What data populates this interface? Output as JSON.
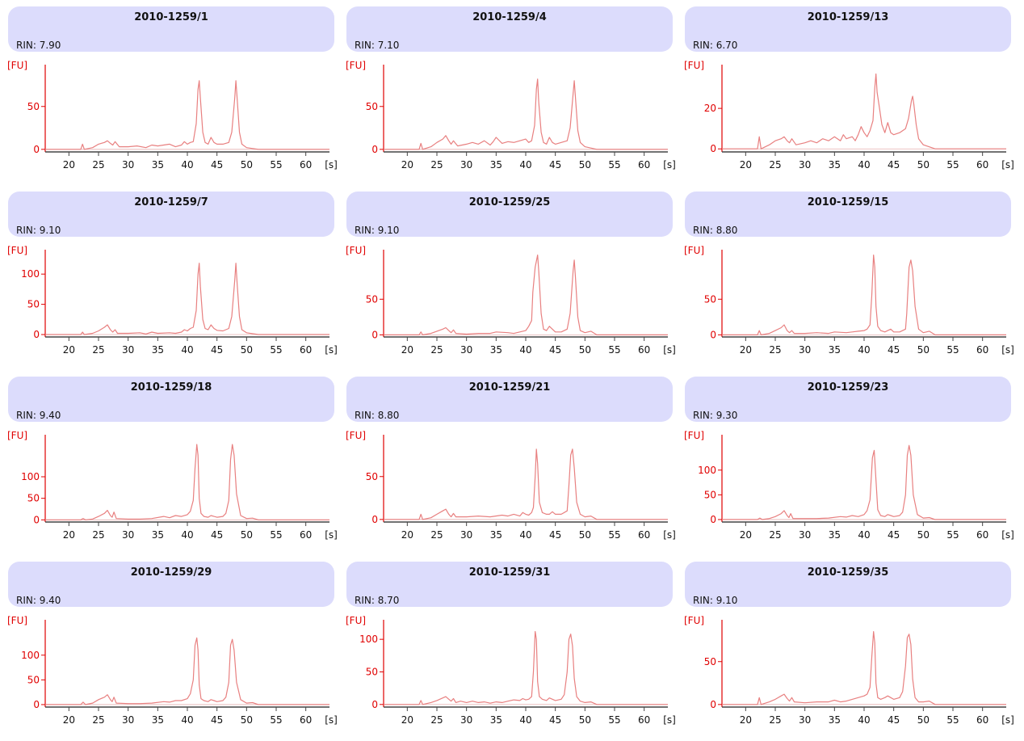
{
  "chart_data": [
    {
      "type": "line",
      "title": "2010-1259/1",
      "rin_label": "RIN: 7.90",
      "y_unit": "[FU]",
      "x_unit": "[s]",
      "x_ticks": [
        20,
        25,
        30,
        35,
        40,
        45,
        50,
        55,
        60
      ],
      "y_ticks": [
        0,
        50
      ],
      "xlim": [
        16,
        64
      ],
      "ylim": [
        -3,
        95
      ],
      "line_color": "#e88080",
      "axis_color": "#e00000",
      "x": [
        16,
        22,
        22.3,
        22.6,
        24,
        25,
        26,
        26.5,
        27,
        27.4,
        27.8,
        28.5,
        30,
        31.5,
        33,
        34,
        35,
        37,
        38,
        39,
        39.5,
        40,
        40.5,
        41,
        41.5,
        41.8,
        42,
        42.2,
        42.6,
        43,
        43.5,
        44,
        44.5,
        45,
        46,
        47,
        47.5,
        48,
        48.2,
        48.4,
        48.8,
        49.2,
        50,
        52,
        64
      ],
      "y": [
        0,
        0,
        6,
        0,
        2,
        6,
        8,
        10,
        7,
        5,
        9,
        3,
        3,
        4,
        2,
        5,
        4,
        6,
        3,
        5,
        9,
        6,
        8,
        9,
        30,
        70,
        80,
        60,
        20,
        8,
        6,
        14,
        8,
        6,
        6,
        8,
        20,
        60,
        80,
        60,
        20,
        6,
        2,
        0,
        0
      ]
    },
    {
      "type": "line",
      "title": "2010-1259/4",
      "rin_label": "RIN: 7.10",
      "y_unit": "[FU]",
      "x_unit": "[s]",
      "x_ticks": [
        20,
        25,
        30,
        35,
        40,
        45,
        50,
        55,
        60
      ],
      "y_ticks": [
        0,
        50
      ],
      "xlim": [
        16,
        64
      ],
      "ylim": [
        -3,
        95
      ],
      "line_color": "#e88080",
      "axis_color": "#e00000",
      "x": [
        16,
        22,
        22.3,
        22.6,
        24,
        25,
        26,
        26.5,
        27,
        27.4,
        27.8,
        28.5,
        30,
        31,
        32,
        33,
        34,
        34.5,
        35,
        36,
        37,
        38,
        39,
        40,
        40.5,
        41,
        41.5,
        41.8,
        42,
        42.2,
        42.6,
        43,
        43.5,
        44,
        44.5,
        45,
        46,
        47,
        47.5,
        48,
        48.2,
        48.4,
        48.8,
        49.2,
        50,
        52,
        64
      ],
      "y": [
        0,
        0,
        7,
        0,
        3,
        8,
        12,
        16,
        10,
        6,
        10,
        4,
        6,
        8,
        6,
        10,
        5,
        9,
        14,
        7,
        9,
        8,
        10,
        12,
        8,
        10,
        28,
        70,
        82,
        55,
        20,
        8,
        6,
        14,
        8,
        6,
        8,
        10,
        25,
        65,
        80,
        60,
        22,
        8,
        3,
        0,
        0
      ]
    },
    {
      "type": "line",
      "title": "2010-1259/13",
      "rin_label": "RIN: 6.70",
      "y_unit": "[FU]",
      "x_unit": "[s]",
      "x_ticks": [
        20,
        25,
        30,
        35,
        40,
        45,
        50,
        55,
        60
      ],
      "y_ticks": [
        0,
        20
      ],
      "xlim": [
        16,
        64
      ],
      "ylim": [
        -1.5,
        40
      ],
      "line_color": "#e88080",
      "axis_color": "#e00000",
      "x": [
        16,
        22,
        22.3,
        22.6,
        24,
        25,
        26,
        26.5,
        27,
        27.4,
        27.8,
        28.5,
        30,
        31,
        32,
        33,
        34,
        35,
        36,
        36.5,
        37,
        38,
        38.5,
        39,
        39.5,
        40,
        40.5,
        41,
        41.5,
        41.8,
        42,
        42.2,
        42.6,
        43,
        43.5,
        44,
        44.5,
        45,
        46,
        47,
        47.5,
        48,
        48.2,
        48.4,
        48.8,
        49.2,
        50,
        52,
        64
      ],
      "y": [
        0,
        0,
        6,
        0,
        2,
        4,
        5,
        6,
        4,
        3,
        5,
        2,
        3,
        4,
        3,
        5,
        4,
        6,
        4,
        7,
        5,
        6,
        4,
        7,
        11,
        8,
        6,
        9,
        14,
        30,
        37,
        28,
        20,
        12,
        8,
        13,
        8,
        7,
        8,
        10,
        15,
        24,
        26,
        22,
        12,
        5,
        2,
        0,
        0
      ]
    },
    {
      "type": "line",
      "title": "2010-1259/7",
      "rin_label": "RIN: 9.10",
      "y_unit": "[FU]",
      "x_unit": "[s]",
      "x_ticks": [
        20,
        25,
        30,
        35,
        40,
        45,
        50,
        55,
        60
      ],
      "y_ticks": [
        0,
        50,
        100
      ],
      "xlim": [
        16,
        64
      ],
      "ylim": [
        -4,
        135
      ],
      "line_color": "#e88080",
      "axis_color": "#e00000",
      "x": [
        16,
        22,
        22.3,
        22.6,
        24,
        25,
        26,
        26.5,
        27,
        27.4,
        27.8,
        28.2,
        30,
        32,
        33,
        34,
        35,
        37,
        38,
        39,
        39.5,
        40,
        40.5,
        41,
        41.5,
        41.8,
        42,
        42.2,
        42.6,
        43,
        43.5,
        44,
        44.5,
        45,
        46,
        47,
        47.5,
        48,
        48.2,
        48.4,
        48.8,
        49.2,
        50,
        52,
        64
      ],
      "y": [
        0,
        0,
        4,
        0,
        2,
        6,
        12,
        16,
        8,
        4,
        8,
        2,
        2,
        3,
        1,
        4,
        2,
        3,
        2,
        4,
        8,
        6,
        10,
        12,
        40,
        100,
        118,
        80,
        25,
        10,
        8,
        16,
        10,
        7,
        6,
        10,
        30,
        90,
        118,
        85,
        30,
        8,
        3,
        0,
        0
      ]
    },
    {
      "type": "line",
      "title": "2010-1259/25",
      "rin_label": "RIN: 9.10",
      "y_unit": "[FU]",
      "x_unit": "[s]",
      "x_ticks": [
        20,
        25,
        30,
        35,
        40,
        45,
        50,
        55,
        60
      ],
      "y_ticks": [
        0,
        50
      ],
      "xlim": [
        16,
        64
      ],
      "ylim": [
        -3,
        115
      ],
      "line_color": "#e88080",
      "axis_color": "#e00000",
      "x": [
        16,
        22,
        22.3,
        22.6,
        24,
        25,
        26,
        26.5,
        27,
        27.4,
        27.8,
        28.2,
        30,
        32,
        34,
        35,
        37,
        38,
        39,
        40,
        40.5,
        41,
        41.2,
        41.6,
        42,
        42.2,
        42.6,
        43,
        43.5,
        44,
        44.5,
        45,
        46,
        47,
        47.5,
        48,
        48.2,
        48.4,
        48.8,
        49.2,
        50,
        51,
        52,
        64
      ],
      "y": [
        0,
        0,
        4,
        0,
        2,
        5,
        8,
        10,
        6,
        3,
        7,
        2,
        1,
        2,
        2,
        4,
        3,
        2,
        4,
        6,
        12,
        20,
        60,
        95,
        112,
        90,
        30,
        8,
        6,
        12,
        8,
        4,
        4,
        8,
        30,
        90,
        105,
        80,
        25,
        6,
        3,
        5,
        0,
        0
      ]
    },
    {
      "type": "line",
      "title": "2010-1259/15",
      "rin_label": "RIN: 8.80",
      "y_unit": "[FU]",
      "x_unit": "[s]",
      "x_ticks": [
        20,
        25,
        30,
        35,
        40,
        45,
        50,
        55,
        60
      ],
      "y_ticks": [
        0,
        50
      ],
      "xlim": [
        16,
        64
      ],
      "ylim": [
        -3,
        115
      ],
      "line_color": "#e88080",
      "axis_color": "#e00000",
      "x": [
        16,
        22,
        22.3,
        22.6,
        24,
        25,
        26,
        26.5,
        27,
        27.4,
        27.8,
        28.2,
        30,
        32,
        34,
        35,
        37,
        38,
        39,
        40,
        40.5,
        41,
        41.3,
        41.6,
        41.8,
        42,
        42.3,
        42.8,
        43.5,
        44,
        44.5,
        45,
        46,
        47,
        47.2,
        47.6,
        47.9,
        48.2,
        48.6,
        49.2,
        50,
        51,
        52,
        64
      ],
      "y": [
        0,
        0,
        6,
        0,
        2,
        6,
        10,
        14,
        6,
        3,
        6,
        2,
        2,
        3,
        2,
        4,
        3,
        4,
        5,
        6,
        8,
        14,
        55,
        112,
        95,
        40,
        12,
        6,
        4,
        6,
        8,
        4,
        4,
        8,
        30,
        95,
        105,
        90,
        40,
        8,
        3,
        5,
        0,
        0
      ]
    },
    {
      "type": "line",
      "title": "2010-1259/18",
      "rin_label": "RIN: 9.40",
      "y_unit": "[FU]",
      "x_unit": "[s]",
      "x_ticks": [
        20,
        25,
        30,
        35,
        40,
        45,
        50,
        55,
        60
      ],
      "y_ticks": [
        0,
        50,
        100
      ],
      "xlim": [
        16,
        64
      ],
      "ylim": [
        -5,
        190
      ],
      "line_color": "#e88080",
      "axis_color": "#e00000",
      "x": [
        16,
        22,
        22.4,
        22.8,
        24,
        25,
        26,
        26.5,
        27,
        27.3,
        27.6,
        28,
        30,
        32,
        34,
        36,
        37,
        38,
        39,
        40,
        40.5,
        41,
        41.3,
        41.6,
        41.8,
        42,
        42.3,
        42.8,
        43.5,
        44,
        44.5,
        45,
        46,
        46.5,
        47,
        47.3,
        47.6,
        47.9,
        48.3,
        49,
        50,
        51,
        52,
        64
      ],
      "y": [
        0,
        0,
        3,
        0,
        2,
        8,
        15,
        22,
        10,
        6,
        18,
        3,
        2,
        2,
        3,
        8,
        5,
        10,
        8,
        12,
        20,
        45,
        120,
        175,
        150,
        50,
        15,
        8,
        6,
        10,
        8,
        6,
        8,
        15,
        45,
        140,
        175,
        150,
        60,
        10,
        3,
        4,
        0,
        0
      ]
    },
    {
      "type": "line",
      "title": "2010-1259/21",
      "rin_label": "RIN: 8.80",
      "y_unit": "[FU]",
      "x_unit": "[s]",
      "x_ticks": [
        20,
        25,
        30,
        35,
        40,
        45,
        50,
        55,
        60
      ],
      "y_ticks": [
        0,
        50
      ],
      "xlim": [
        16,
        64
      ],
      "ylim": [
        -3,
        95
      ],
      "line_color": "#e88080",
      "axis_color": "#e00000",
      "x": [
        16,
        22,
        22.3,
        22.6,
        24,
        25,
        26,
        26.5,
        27,
        27.4,
        27.8,
        28.2,
        30,
        32,
        34,
        36,
        37,
        38,
        39,
        39.5,
        40,
        40.5,
        41,
        41.3,
        41.6,
        41.8,
        42,
        42.3,
        42.8,
        43.5,
        44,
        44.5,
        45,
        46,
        47,
        47.3,
        47.6,
        47.9,
        48.2,
        48.6,
        49.2,
        50,
        51,
        52,
        64
      ],
      "y": [
        0,
        0,
        6,
        0,
        2,
        6,
        10,
        12,
        6,
        3,
        7,
        3,
        3,
        4,
        3,
        5,
        4,
        6,
        4,
        8,
        6,
        5,
        8,
        14,
        50,
        82,
        65,
        20,
        8,
        6,
        6,
        9,
        6,
        6,
        10,
        40,
        75,
        82,
        60,
        20,
        6,
        3,
        4,
        0,
        0
      ]
    },
    {
      "type": "line",
      "title": "2010-1259/23",
      "rin_label": "RIN: 9.30",
      "y_unit": "[FU]",
      "x_unit": "[s]",
      "x_ticks": [
        20,
        25,
        30,
        35,
        40,
        45,
        50,
        55,
        60
      ],
      "y_ticks": [
        0,
        50,
        100
      ],
      "xlim": [
        16,
        64
      ],
      "ylim": [
        -5,
        165
      ],
      "line_color": "#e88080",
      "axis_color": "#e00000",
      "x": [
        16,
        22,
        22.4,
        22.8,
        24,
        25,
        26,
        26.5,
        27,
        27.3,
        27.6,
        28,
        30,
        32,
        34,
        36,
        37,
        38,
        39,
        40,
        40.5,
        41,
        41.4,
        41.7,
        42,
        42.3,
        42.8,
        43.5,
        44,
        44.5,
        45,
        46,
        46.5,
        47,
        47.3,
        47.6,
        47.9,
        48.3,
        49,
        50,
        51,
        52,
        64
      ],
      "y": [
        0,
        0,
        3,
        0,
        2,
        6,
        12,
        18,
        8,
        4,
        12,
        2,
        2,
        2,
        3,
        6,
        5,
        8,
        6,
        10,
        18,
        40,
        125,
        140,
        80,
        20,
        8,
        6,
        10,
        8,
        6,
        8,
        15,
        50,
        130,
        150,
        130,
        50,
        10,
        3,
        4,
        0,
        0
      ]
    },
    {
      "type": "line",
      "title": "2010-1259/29",
      "rin_label": "RIN: 9.40",
      "y_unit": "[FU]",
      "x_unit": "[s]",
      "x_ticks": [
        20,
        25,
        30,
        35,
        40,
        45,
        50,
        55,
        60
      ],
      "y_ticks": [
        0,
        50,
        100
      ],
      "xlim": [
        16,
        64
      ],
      "ylim": [
        -5,
        165
      ],
      "line_color": "#e88080",
      "axis_color": "#e00000",
      "x": [
        16,
        22,
        22.4,
        22.8,
        24,
        25,
        26,
        26.5,
        27,
        27.3,
        27.6,
        28,
        30,
        32,
        34,
        36,
        37,
        38,
        39,
        40,
        40.5,
        41,
        41.3,
        41.6,
        41.8,
        42,
        42.3,
        42.8,
        43.5,
        44,
        44.5,
        45,
        46,
        46.5,
        47,
        47.3,
        47.6,
        47.9,
        48.3,
        49,
        50,
        51,
        52,
        64
      ],
      "y": [
        0,
        0,
        5,
        0,
        3,
        10,
        15,
        20,
        10,
        6,
        15,
        3,
        2,
        2,
        3,
        6,
        5,
        8,
        8,
        12,
        22,
        50,
        120,
        135,
        110,
        40,
        12,
        8,
        6,
        10,
        8,
        6,
        8,
        15,
        45,
        120,
        132,
        110,
        45,
        10,
        3,
        4,
        0,
        0
      ]
    },
    {
      "type": "line",
      "title": "2010-1259/31",
      "rin_label": "RIN: 8.70",
      "y_unit": "[FU]",
      "x_unit": "[s]",
      "x_ticks": [
        20,
        25,
        30,
        35,
        40,
        45,
        50,
        55,
        60
      ],
      "y_ticks": [
        0,
        50,
        100
      ],
      "xlim": [
        16,
        64
      ],
      "ylim": [
        -4,
        125
      ],
      "line_color": "#e88080",
      "axis_color": "#e00000",
      "x": [
        16,
        22,
        22.3,
        22.6,
        24,
        25,
        26,
        26.5,
        27,
        27.4,
        27.8,
        28.2,
        29,
        30,
        31,
        32,
        33,
        34,
        35,
        36,
        37,
        38,
        39,
        39.5,
        40,
        40.5,
        41,
        41.3,
        41.6,
        41.8,
        42,
        42.3,
        42.8,
        43.5,
        44,
        44.5,
        45,
        46,
        46.5,
        47,
        47.3,
        47.6,
        47.9,
        48.2,
        48.6,
        49.2,
        50,
        51,
        52,
        64
      ],
      "y": [
        0,
        0,
        6,
        0,
        3,
        6,
        10,
        12,
        8,
        5,
        9,
        3,
        5,
        3,
        5,
        3,
        4,
        2,
        4,
        3,
        5,
        7,
        6,
        9,
        7,
        8,
        12,
        50,
        112,
        100,
        35,
        12,
        8,
        6,
        10,
        8,
        6,
        8,
        15,
        50,
        100,
        108,
        90,
        40,
        12,
        5,
        3,
        4,
        0,
        0
      ]
    },
    {
      "type": "line",
      "title": "2010-1259/35",
      "rin_label": "RIN: 9.10",
      "y_unit": "[FU]",
      "x_unit": "[s]",
      "x_ticks": [
        20,
        25,
        30,
        35,
        40,
        45,
        50,
        55,
        60
      ],
      "y_ticks": [
        0,
        50
      ],
      "xlim": [
        16,
        64
      ],
      "ylim": [
        -3,
        95
      ],
      "line_color": "#e88080",
      "axis_color": "#e00000",
      "x": [
        16,
        22,
        22.3,
        22.6,
        24,
        25,
        26,
        26.5,
        27,
        27.4,
        27.8,
        28.2,
        30,
        32,
        34,
        35,
        36,
        37,
        38,
        39,
        40,
        40.5,
        41,
        41.3,
        41.6,
        41.8,
        42,
        42.3,
        42.8,
        43.5,
        44,
        44.5,
        45,
        46,
        46.5,
        47,
        47.3,
        47.6,
        47.9,
        48.2,
        48.6,
        49.2,
        50,
        51,
        52,
        64
      ],
      "y": [
        0,
        0,
        8,
        0,
        3,
        6,
        10,
        12,
        7,
        4,
        8,
        3,
        2,
        3,
        3,
        5,
        3,
        4,
        6,
        8,
        10,
        12,
        20,
        55,
        85,
        72,
        25,
        8,
        6,
        8,
        10,
        8,
        6,
        8,
        15,
        45,
        78,
        82,
        70,
        30,
        8,
        3,
        3,
        4,
        0,
        0
      ]
    }
  ]
}
